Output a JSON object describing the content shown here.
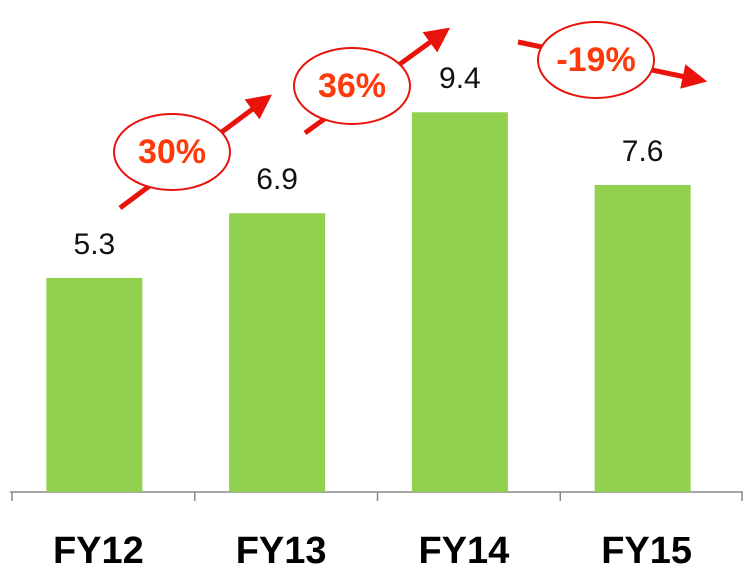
{
  "chart_data": {
    "type": "bar",
    "categories": [
      "FY12",
      "FY13",
      "FY14",
      "FY15"
    ],
    "values": [
      5.3,
      6.9,
      9.4,
      7.6
    ],
    "color": "#92d050",
    "annotations": [
      "30%",
      "36%",
      "-19%"
    ]
  }
}
